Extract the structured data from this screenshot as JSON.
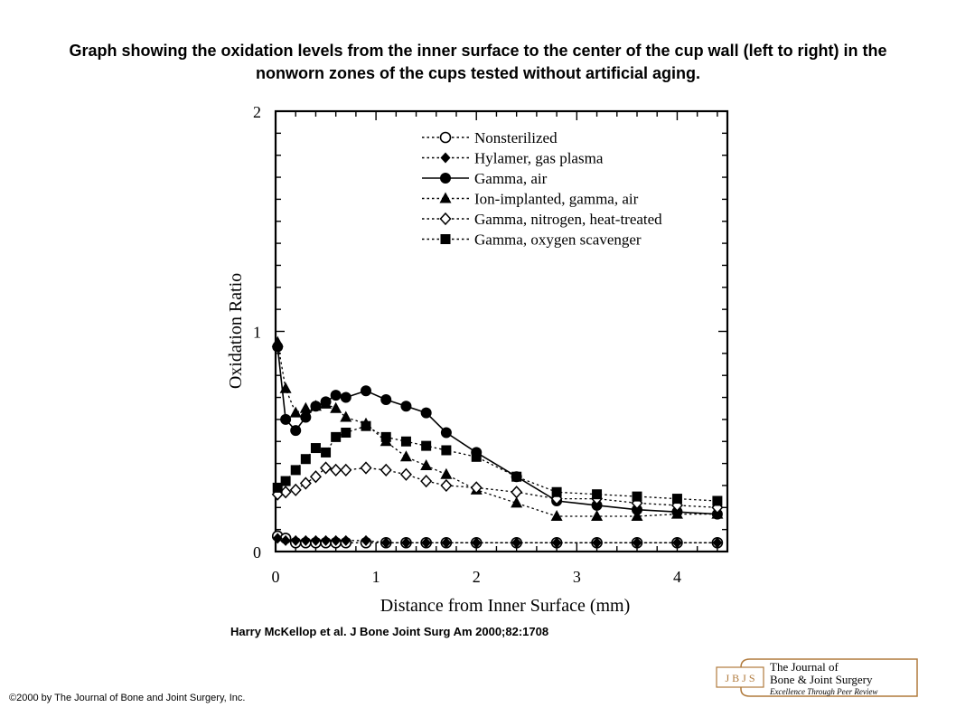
{
  "slide": {
    "title": "Graph showing the oxidation levels from the inner surface to the center of the cup wall (left to right) in the nonworn zones of the cups tested without artificial aging.",
    "citation": "Harry McKellop et al. J Bone Joint Surg Am 2000;82:1708",
    "copyright": "©2000 by The Journal of Bone and Joint Surgery, Inc.",
    "logo": {
      "mark": "J B J S",
      "line1": "The Journal of",
      "line2": "Bone & Joint Surgery",
      "line3": "Excellence Through Peer Review"
    }
  },
  "chart_data": {
    "type": "line",
    "title": "",
    "xlabel": "Distance from Inner Surface (mm)",
    "ylabel": "Oxidation Ratio",
    "xlim": [
      0,
      4.5
    ],
    "ylim": [
      0,
      2
    ],
    "x_ticks": [
      0,
      1,
      2,
      3,
      4
    ],
    "y_ticks": [
      0,
      1,
      2
    ],
    "grid": false,
    "legend_position": "top-right",
    "series": [
      {
        "name": "Nonsterilized",
        "marker": "open-circle",
        "line": "dotted",
        "x": [
          0.02,
          0.1,
          0.2,
          0.3,
          0.4,
          0.5,
          0.6,
          0.7,
          0.9,
          1.1,
          1.3,
          1.5,
          1.7,
          2.0,
          2.4,
          2.8,
          3.2,
          3.6,
          4.0,
          4.4
        ],
        "y": [
          0.07,
          0.06,
          0.04,
          0.04,
          0.04,
          0.04,
          0.04,
          0.04,
          0.04,
          0.04,
          0.04,
          0.04,
          0.04,
          0.04,
          0.04,
          0.04,
          0.04,
          0.04,
          0.04,
          0.04
        ]
      },
      {
        "name": "Hylamer, gas plasma",
        "marker": "filled-diamond",
        "line": "dotted",
        "x": [
          0.02,
          0.1,
          0.2,
          0.3,
          0.4,
          0.5,
          0.6,
          0.7,
          0.9,
          1.1,
          1.3,
          1.5,
          1.7,
          2.0,
          2.4,
          2.8,
          3.2,
          3.6,
          4.0,
          4.4
        ],
        "y": [
          0.06,
          0.05,
          0.05,
          0.05,
          0.05,
          0.05,
          0.05,
          0.05,
          0.05,
          0.04,
          0.04,
          0.04,
          0.04,
          0.04,
          0.04,
          0.04,
          0.04,
          0.04,
          0.04,
          0.04
        ]
      },
      {
        "name": "Gamma, air",
        "marker": "filled-circle",
        "line": "solid",
        "x": [
          0.02,
          0.1,
          0.2,
          0.3,
          0.4,
          0.5,
          0.6,
          0.7,
          0.9,
          1.1,
          1.3,
          1.5,
          1.7,
          2.0,
          2.4,
          2.8,
          3.2,
          3.6,
          4.0,
          4.4
        ],
        "y": [
          0.93,
          0.6,
          0.55,
          0.61,
          0.66,
          0.68,
          0.71,
          0.7,
          0.73,
          0.69,
          0.66,
          0.63,
          0.54,
          0.45,
          0.34,
          0.23,
          0.21,
          0.19,
          0.18,
          0.17
        ]
      },
      {
        "name": "Ion-implanted, gamma, air",
        "marker": "filled-triangle",
        "line": "dotted",
        "x": [
          0.02,
          0.1,
          0.2,
          0.3,
          0.4,
          0.5,
          0.6,
          0.7,
          0.9,
          1.1,
          1.3,
          1.5,
          1.7,
          2.0,
          2.4,
          2.8,
          3.2,
          3.6,
          4.0,
          4.4
        ],
        "y": [
          0.95,
          0.74,
          0.63,
          0.65,
          0.66,
          0.67,
          0.65,
          0.61,
          0.58,
          0.5,
          0.43,
          0.39,
          0.35,
          0.28,
          0.22,
          0.16,
          0.16,
          0.16,
          0.17,
          0.17
        ]
      },
      {
        "name": "Gamma, nitrogen, heat-treated",
        "marker": "open-diamond",
        "line": "dotted",
        "x": [
          0.02,
          0.1,
          0.2,
          0.3,
          0.4,
          0.5,
          0.6,
          0.7,
          0.9,
          1.1,
          1.3,
          1.5,
          1.7,
          2.0,
          2.4,
          2.8,
          3.2,
          3.6,
          4.0,
          4.4
        ],
        "y": [
          0.26,
          0.27,
          0.28,
          0.31,
          0.34,
          0.38,
          0.37,
          0.37,
          0.38,
          0.37,
          0.35,
          0.32,
          0.3,
          0.29,
          0.27,
          0.24,
          0.24,
          0.22,
          0.21,
          0.2
        ]
      },
      {
        "name": "Gamma, oxygen scavenger",
        "marker": "filled-square",
        "line": "dotted",
        "x": [
          0.02,
          0.1,
          0.2,
          0.3,
          0.4,
          0.5,
          0.6,
          0.7,
          0.9,
          1.1,
          1.3,
          1.5,
          1.7,
          2.0,
          2.4,
          2.8,
          3.2,
          3.6,
          4.0,
          4.4
        ],
        "y": [
          0.29,
          0.32,
          0.37,
          0.42,
          0.47,
          0.45,
          0.52,
          0.54,
          0.57,
          0.52,
          0.5,
          0.48,
          0.46,
          0.43,
          0.34,
          0.27,
          0.26,
          0.25,
          0.24,
          0.23
        ]
      }
    ]
  }
}
